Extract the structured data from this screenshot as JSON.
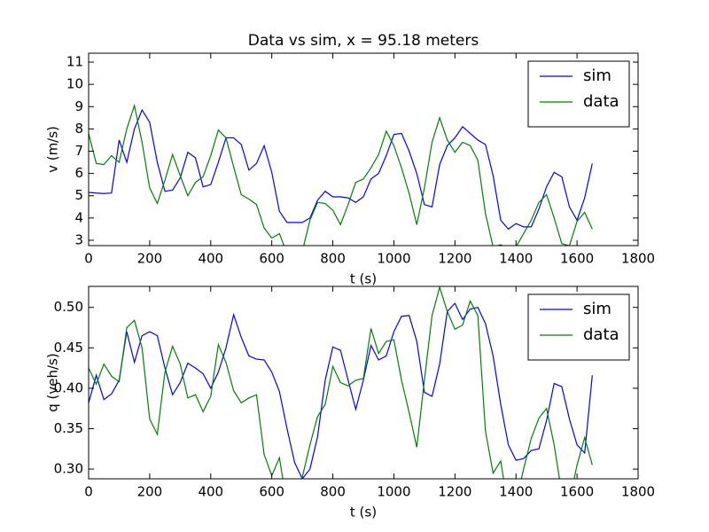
{
  "chart_data": [
    {
      "type": "line",
      "title": "Data vs sim, x = 95.18 meters",
      "xlabel": "t (s)",
      "ylabel": "v (m/s)",
      "x": [
        0,
        25,
        50,
        75,
        100,
        125,
        150,
        175,
        200,
        225,
        250,
        275,
        300,
        325,
        350,
        375,
        400,
        425,
        450,
        475,
        500,
        525,
        550,
        575,
        600,
        625,
        650,
        675,
        700,
        725,
        750,
        775,
        800,
        825,
        850,
        875,
        900,
        925,
        950,
        975,
        1000,
        1025,
        1050,
        1075,
        1100,
        1125,
        1150,
        1175,
        1200,
        1225,
        1250,
        1275,
        1300,
        1325,
        1350,
        1375,
        1400,
        1425,
        1450,
        1475,
        1500,
        1525,
        1550,
        1575,
        1600,
        1625,
        1650
      ],
      "series": [
        {
          "name": "sim",
          "color": "#0000ff",
          "values": [
            5.15,
            5.12,
            5.1,
            5.12,
            7.5,
            6.5,
            8.0,
            8.85,
            8.3,
            6.5,
            5.2,
            5.25,
            5.8,
            6.95,
            6.7,
            5.4,
            5.5,
            6.5,
            7.6,
            7.6,
            7.3,
            6.15,
            6.45,
            7.25,
            6.05,
            4.3,
            3.8,
            3.8,
            3.8,
            4.0,
            4.8,
            5.2,
            4.95,
            4.95,
            4.9,
            4.7,
            4.95,
            5.75,
            6.0,
            6.8,
            7.75,
            7.8,
            7.0,
            6.0,
            4.6,
            4.5,
            6.4,
            7.25,
            7.6,
            8.1,
            7.8,
            7.5,
            7.3,
            5.9,
            3.9,
            3.5,
            3.75,
            3.6,
            3.6,
            4.4,
            5.4,
            6.05,
            5.85,
            4.5,
            3.9,
            4.9,
            6.45
          ]
        },
        {
          "name": "data",
          "color": "#008000",
          "values": [
            7.8,
            6.45,
            6.4,
            6.8,
            6.5,
            8.0,
            9.05,
            7.4,
            5.35,
            4.65,
            5.7,
            6.85,
            5.9,
            5.0,
            5.6,
            5.85,
            6.8,
            7.95,
            7.6,
            6.3,
            5.05,
            4.85,
            4.6,
            3.55,
            3.1,
            3.3,
            2.4,
            2.2,
            2.5,
            3.9,
            4.7,
            4.65,
            4.35,
            3.7,
            4.6,
            5.6,
            5.75,
            6.25,
            6.85,
            7.9,
            7.25,
            6.25,
            5.1,
            3.7,
            5.35,
            7.4,
            8.5,
            7.5,
            6.95,
            7.4,
            7.25,
            6.6,
            4.2,
            2.7,
            2.8,
            2.6,
            2.7,
            3.3,
            3.9,
            4.7,
            5.05,
            4.0,
            2.85,
            2.75,
            3.85,
            4.25,
            3.5
          ]
        }
      ],
      "xlim": [
        0,
        1800
      ],
      "xticks": [
        0,
        200,
        400,
        600,
        800,
        1000,
        1200,
        1400,
        1600,
        1800
      ],
      "ylim": [
        2.76,
        11.4
      ],
      "yticks": [
        3,
        4,
        5,
        6,
        7,
        8,
        9,
        10,
        11
      ],
      "legend": "upper right"
    },
    {
      "type": "line",
      "xlabel": "t (s)",
      "ylabel": "q (veh/s)",
      "x": [
        0,
        25,
        50,
        75,
        100,
        125,
        150,
        175,
        200,
        225,
        250,
        275,
        300,
        325,
        350,
        375,
        400,
        425,
        450,
        475,
        500,
        525,
        550,
        575,
        600,
        625,
        650,
        675,
        700,
        725,
        750,
        775,
        800,
        825,
        850,
        875,
        900,
        925,
        950,
        975,
        1000,
        1025,
        1050,
        1075,
        1100,
        1125,
        1150,
        1175,
        1200,
        1225,
        1250,
        1275,
        1300,
        1325,
        1350,
        1375,
        1400,
        1425,
        1450,
        1475,
        1500,
        1525,
        1550,
        1575,
        1600,
        1625,
        1650
      ],
      "series": [
        {
          "name": "sim",
          "color": "#0000ff",
          "values": [
            0.382,
            0.416,
            0.386,
            0.393,
            0.41,
            0.47,
            0.432,
            0.465,
            0.47,
            0.465,
            0.425,
            0.392,
            0.407,
            0.431,
            0.425,
            0.418,
            0.4,
            0.42,
            0.45,
            0.491,
            0.463,
            0.44,
            0.436,
            0.435,
            0.42,
            0.396,
            0.35,
            0.308,
            0.288,
            0.3,
            0.34,
            0.41,
            0.451,
            0.447,
            0.41,
            0.374,
            0.41,
            0.453,
            0.435,
            0.44,
            0.47,
            0.489,
            0.49,
            0.458,
            0.395,
            0.39,
            0.43,
            0.495,
            0.505,
            0.485,
            0.498,
            0.5,
            0.48,
            0.44,
            0.38,
            0.33,
            0.311,
            0.313,
            0.323,
            0.325,
            0.36,
            0.406,
            0.402,
            0.362,
            0.33,
            0.32,
            0.416
          ]
        },
        {
          "name": "data",
          "color": "#008000",
          "values": [
            0.425,
            0.405,
            0.43,
            0.415,
            0.408,
            0.475,
            0.484,
            0.45,
            0.362,
            0.343,
            0.42,
            0.452,
            0.43,
            0.388,
            0.392,
            0.371,
            0.39,
            0.454,
            0.432,
            0.397,
            0.382,
            0.388,
            0.392,
            0.318,
            0.292,
            0.314,
            0.255,
            0.24,
            0.29,
            0.33,
            0.365,
            0.38,
            0.427,
            0.407,
            0.403,
            0.41,
            0.412,
            0.474,
            0.443,
            0.458,
            0.46,
            0.41,
            0.37,
            0.327,
            0.41,
            0.49,
            0.525,
            0.495,
            0.473,
            0.478,
            0.508,
            0.49,
            0.347,
            0.295,
            0.31,
            0.25,
            0.26,
            0.3,
            0.338,
            0.363,
            0.375,
            0.33,
            0.27,
            0.26,
            0.305,
            0.339,
            0.305
          ]
        }
      ],
      "xlim": [
        0,
        1800
      ],
      "xticks": [
        0,
        200,
        400,
        600,
        800,
        1000,
        1200,
        1400,
        1600,
        1800
      ],
      "ylim": [
        0.288,
        0.526
      ],
      "yticks": [
        {
          "value": 0.3,
          "label": "0.30"
        },
        {
          "value": 0.35,
          "label": "0.35"
        },
        {
          "value": 0.4,
          "label": "0.40"
        },
        {
          "value": 0.45,
          "label": "0.45"
        },
        {
          "value": 0.5,
          "label": "0.50"
        }
      ],
      "legend": "upper right"
    }
  ]
}
